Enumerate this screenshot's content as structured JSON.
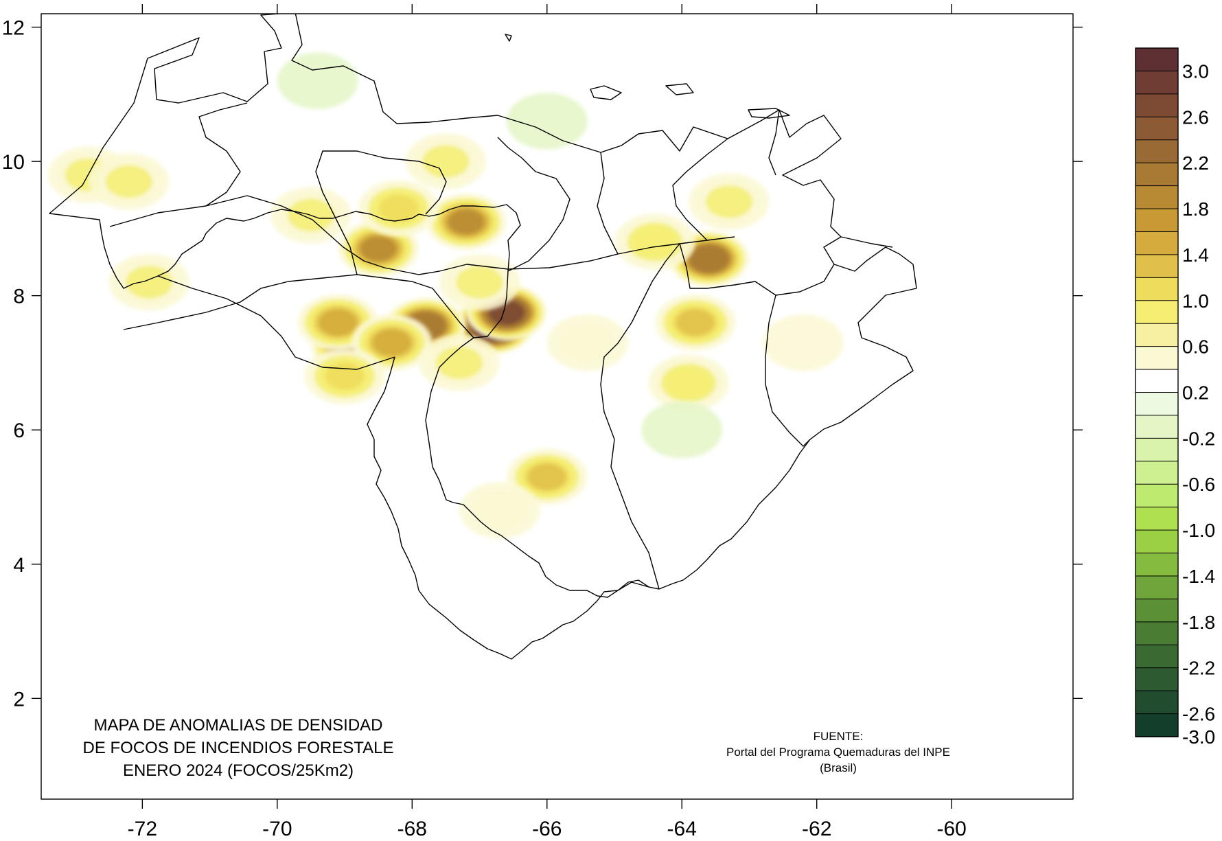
{
  "map": {
    "title_lines": [
      "MAPA DE ANOMALIAS DE DENSIDAD",
      "DE FOCOS DE INCENDIOS FORESTALE",
      "ENERO 2024 (FOCOS/25Km2)"
    ],
    "source_lines": [
      "FUENTE:",
      "Portal del Programa Quemaduras del INPE",
      "(Brasil)"
    ],
    "x_ticks": [
      "-72",
      "-70",
      "-68",
      "-66",
      "-64",
      "-62",
      "-60"
    ],
    "y_ticks": [
      "12",
      "10",
      "8",
      "6",
      "4",
      "2"
    ]
  },
  "colorbar": {
    "labels": [
      "3.0",
      "2.6",
      "2.2",
      "1.8",
      "1.4",
      "1.0",
      "0.6",
      "0.2",
      "-0.2",
      "-0.6",
      "-1.0",
      "-1.4",
      "-1.8",
      "-2.2",
      "-2.6",
      "-3.0"
    ],
    "colors": [
      "#5e3034",
      "#6f3d34",
      "#7d4a34",
      "#8c5a34",
      "#9a6a34",
      "#a97a34",
      "#b88a34",
      "#c79a36",
      "#d4ab3c",
      "#e0c04a",
      "#eedc5c",
      "#f5ee72",
      "#f7f0a0",
      "#fbf8d4",
      "#ffffff",
      "#eef9e2",
      "#e4f6c6",
      "#daf3aa",
      "#cef090",
      "#bfea70",
      "#afe050",
      "#9bcf44",
      "#85bb3e",
      "#6fa53a",
      "#5b9036",
      "#4a7c34",
      "#3a6a32",
      "#2d5a30",
      "#214c2e",
      "#143e2c"
    ]
  },
  "chart_data": {
    "type": "heatmap",
    "title": "MAPA DE ANOMALIAS DE DENSIDAD DE FOCOS DE INCENDIOS FORESTALE ENERO 2024 (FOCOS/25Km2)",
    "xlim": [
      -73.5,
      -58.2
    ],
    "ylim": [
      0.5,
      12.2
    ],
    "x_ticks": [
      -72,
      -70,
      -68,
      -66,
      -64,
      -62,
      -60
    ],
    "y_ticks": [
      2,
      4,
      6,
      8,
      10,
      12
    ],
    "colorbar_range": [
      -3.0,
      3.0
    ],
    "hotspots": [
      {
        "lon": -66.8,
        "lat": 7.55,
        "value": 3.0
      },
      {
        "lon": -66.6,
        "lat": 7.75,
        "value": 2.4
      },
      {
        "lon": -68.9,
        "lat": 7.25,
        "value": 2.0
      },
      {
        "lon": -67.8,
        "lat": 7.55,
        "value": 2.0
      },
      {
        "lon": -63.6,
        "lat": 8.55,
        "value": 2.0
      },
      {
        "lon": -68.5,
        "lat": 8.7,
        "value": 1.6
      },
      {
        "lon": -67.2,
        "lat": 9.1,
        "value": 1.6
      },
      {
        "lon": -69.1,
        "lat": 7.6,
        "value": 1.4
      },
      {
        "lon": -68.3,
        "lat": 7.3,
        "value": 1.4
      },
      {
        "lon": -63.8,
        "lat": 7.6,
        "value": 1.2
      },
      {
        "lon": -69.0,
        "lat": 6.8,
        "value": 1.0
      },
      {
        "lon": -66.0,
        "lat": 5.3,
        "value": 1.2
      },
      {
        "lon": -68.2,
        "lat": 9.3,
        "value": 1.0
      },
      {
        "lon": -64.4,
        "lat": 8.8,
        "value": 0.8
      },
      {
        "lon": -63.9,
        "lat": 6.7,
        "value": 0.8
      },
      {
        "lon": -67.3,
        "lat": 7.0,
        "value": 0.6
      },
      {
        "lon": -63.3,
        "lat": 9.4,
        "value": 0.6
      },
      {
        "lon": -72.8,
        "lat": 9.8,
        "value": 0.6
      },
      {
        "lon": -72.2,
        "lat": 9.7,
        "value": 0.6
      },
      {
        "lon": -69.5,
        "lat": 9.2,
        "value": 0.6
      },
      {
        "lon": -67.5,
        "lat": 10.0,
        "value": 0.6
      },
      {
        "lon": -71.9,
        "lat": 8.2,
        "value": 0.6
      },
      {
        "lon": -67.0,
        "lat": 8.2,
        "value": 0.6
      },
      {
        "lon": -65.4,
        "lat": 7.3,
        "value": 0.4
      },
      {
        "lon": -66.7,
        "lat": 4.8,
        "value": 0.4
      },
      {
        "lon": -62.2,
        "lat": 7.3,
        "value": 0.2
      },
      {
        "lon": -69.4,
        "lat": 11.2,
        "value": -0.2
      },
      {
        "lon": -66.0,
        "lat": 10.6,
        "value": -0.2
      },
      {
        "lon": -64.0,
        "lat": 6.0,
        "value": -0.2
      }
    ]
  }
}
